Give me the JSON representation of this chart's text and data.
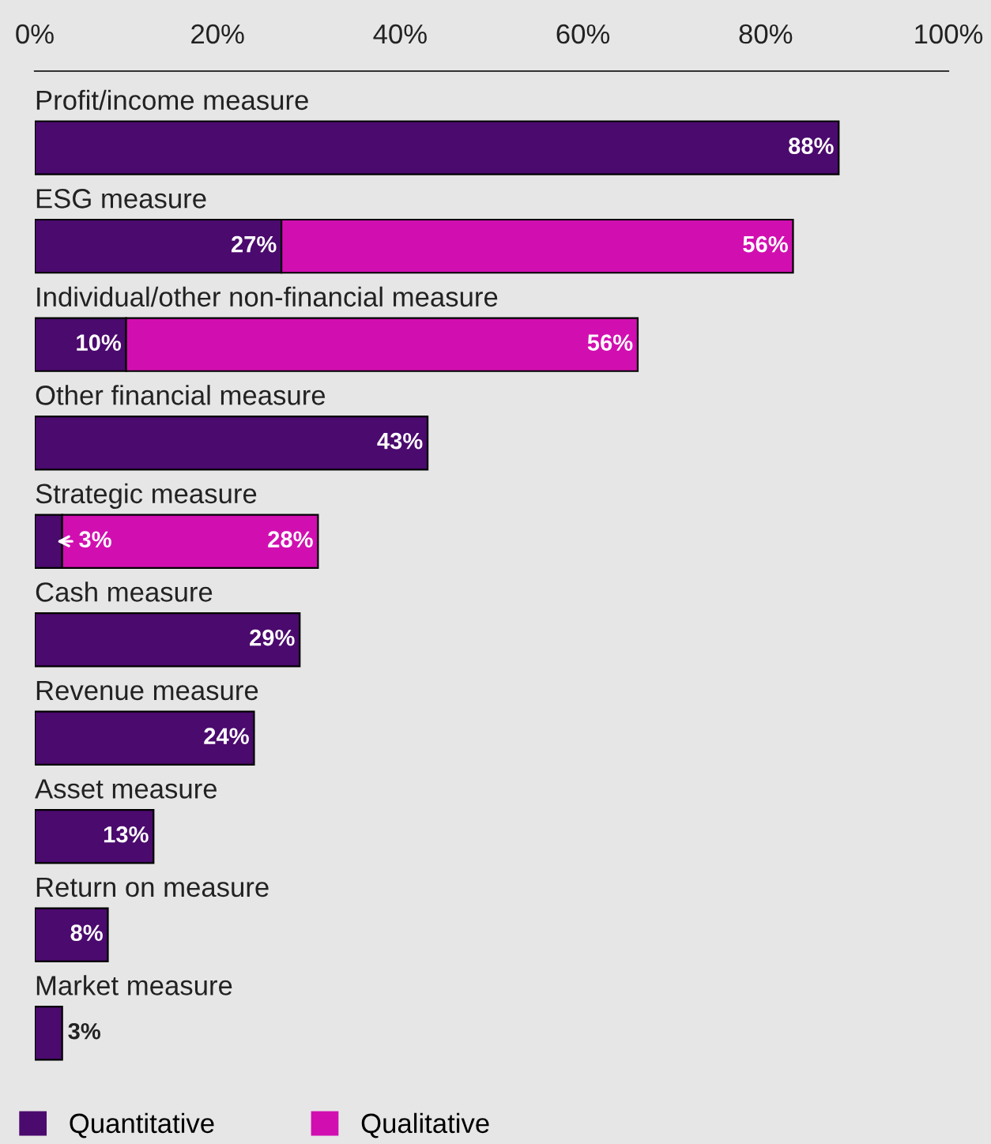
{
  "chart_data": {
    "type": "bar",
    "orientation": "horizontal",
    "stacked": true,
    "categories": [
      "Profit/income measure",
      "ESG measure",
      "Individual/other non-financial measure",
      "Other financial measure",
      "Strategic measure",
      "Cash measure",
      "Revenue measure",
      "Asset measure",
      "Return on measure",
      "Market measure"
    ],
    "series": [
      {
        "name": "Quantitative",
        "color": "#4b0a6e",
        "values": [
          88,
          27,
          10,
          43,
          3,
          29,
          24,
          13,
          8,
          3
        ],
        "value_labels": [
          "88%",
          "27%",
          "10%",
          "43%",
          "3%",
          "29%",
          "24%",
          "13%",
          "8%",
          "3%"
        ]
      },
      {
        "name": "Qualitative",
        "color": "#d10fb1",
        "values": [
          null,
          56,
          56,
          null,
          28,
          null,
          null,
          null,
          null,
          null
        ],
        "value_labels": [
          null,
          "56%",
          "56%",
          null,
          "28%",
          null,
          null,
          null,
          null,
          null
        ]
      }
    ],
    "xlim": [
      0,
      100
    ],
    "xticks": [
      {
        "value": 0,
        "label": "0%"
      },
      {
        "value": 20,
        "label": "20%"
      },
      {
        "value": 40,
        "label": "40%"
      },
      {
        "value": 60,
        "label": "60%"
      },
      {
        "value": 80,
        "label": "80%"
      },
      {
        "value": 100,
        "label": "100%"
      }
    ],
    "grid": false,
    "legend": "bottom left"
  }
}
